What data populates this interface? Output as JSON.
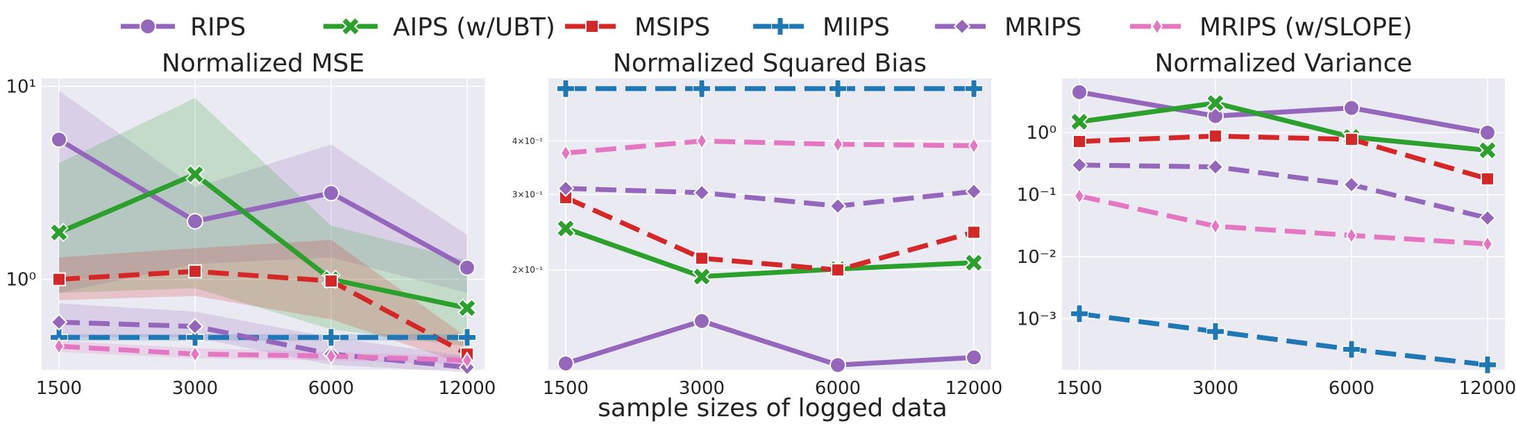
{
  "legend": [
    {
      "name": "RIPS",
      "color": "#9467bd",
      "dash": "solid",
      "marker": "circle"
    },
    {
      "name": "AIPS (w/UBT)",
      "color": "#2ca02c",
      "dash": "solid",
      "marker": "x"
    },
    {
      "name": "MSIPS",
      "color": "#d62728",
      "dash": "dashed",
      "marker": "square"
    },
    {
      "name": "MIIPS",
      "color": "#1f77b4",
      "dash": "dashed",
      "marker": "plus"
    },
    {
      "name": "MRIPS",
      "color": "#9467bd",
      "dash": "dashed",
      "marker": "diamond"
    },
    {
      "name": "MRIPS (w/SLOPE)",
      "color": "#e377c2",
      "dash": "dashed",
      "marker": "thin_diamond"
    }
  ],
  "xlabel": "sample sizes of logged data",
  "chart_data": [
    {
      "type": "line",
      "title": "Normalized MSE",
      "x": [
        "1500",
        "3000",
        "6000",
        "12000"
      ],
      "yscale": "log",
      "ylim": [
        0.34,
        11
      ],
      "yticks": [
        {
          "value": 1,
          "label": "10⁰"
        },
        {
          "value": 10,
          "label": "10¹"
        }
      ],
      "ytick_style": "normal",
      "series": [
        {
          "name": "RIPS",
          "values": [
            5.3,
            2.0,
            2.8,
            1.15
          ],
          "band": [
            [
              0.85,
              9.5
            ],
            [
              1.2,
              3.0
            ],
            [
              1.3,
              5.0
            ],
            [
              0.85,
              1.7
            ]
          ]
        },
        {
          "name": "AIPS (w/UBT)",
          "values": [
            1.75,
            3.5,
            1.0,
            0.71
          ],
          "band": [
            [
              0.85,
              4.0
            ],
            [
              0.9,
              8.7
            ],
            [
              0.55,
              1.9
            ],
            [
              0.45,
              1.25
            ]
          ]
        },
        {
          "name": "MSIPS",
          "values": [
            1.0,
            1.1,
            0.98,
            0.41
          ],
          "band": [
            [
              0.78,
              1.3
            ],
            [
              0.82,
              1.45
            ],
            [
              0.62,
              1.6
            ],
            [
              0.36,
              0.5
            ]
          ]
        },
        {
          "name": "MIIPS",
          "values": [
            0.5,
            0.5,
            0.5,
            0.5
          ],
          "band": [
            [
              0.48,
              0.52
            ],
            [
              0.48,
              0.52
            ],
            [
              0.48,
              0.52
            ],
            [
              0.48,
              0.52
            ]
          ]
        },
        {
          "name": "MRIPS",
          "values": [
            0.6,
            0.57,
            0.41,
            0.35
          ],
          "band": [
            [
              0.5,
              0.75
            ],
            [
              0.5,
              0.68
            ],
            [
              0.36,
              0.5
            ],
            [
              0.33,
              0.4
            ]
          ]
        },
        {
          "name": "MRIPS (w/SLOPE)",
          "values": [
            0.45,
            0.41,
            0.4,
            0.38
          ],
          "band": [
            [
              0.42,
              0.48
            ],
            [
              0.39,
              0.44
            ],
            [
              0.38,
              0.42
            ],
            [
              0.36,
              0.4
            ]
          ]
        }
      ]
    },
    {
      "type": "line",
      "title": "Normalized Squared Bias",
      "x": [
        "1500",
        "3000",
        "6000",
        "12000"
      ],
      "yscale": "log",
      "ylim": [
        0.117,
        0.56
      ],
      "yticks": [
        {
          "value": 0.2,
          "label": "2×10⁻¹"
        },
        {
          "value": 0.3,
          "label": "3×10⁻¹"
        },
        {
          "value": 0.4,
          "label": "4×10⁻¹"
        }
      ],
      "ytick_style": "small",
      "series": [
        {
          "name": "RIPS",
          "values": [
            0.121,
            0.152,
            0.12,
            0.125
          ]
        },
        {
          "name": "AIPS (w/UBT)",
          "values": [
            0.25,
            0.193,
            0.201,
            0.208
          ]
        },
        {
          "name": "MSIPS",
          "values": [
            0.295,
            0.213,
            0.2,
            0.245
          ]
        },
        {
          "name": "MIIPS",
          "values": [
            0.53,
            0.53,
            0.53,
            0.53
          ]
        },
        {
          "name": "MRIPS",
          "values": [
            0.31,
            0.303,
            0.282,
            0.305
          ]
        },
        {
          "name": "MRIPS (w/SLOPE)",
          "values": [
            0.375,
            0.4,
            0.393,
            0.39
          ]
        }
      ]
    },
    {
      "type": "line",
      "title": "Normalized Variance",
      "x": [
        "1500",
        "3000",
        "6000",
        "12000"
      ],
      "yscale": "log",
      "ylim": [
        0.00015,
        7.5
      ],
      "yticks": [
        {
          "value": 0.001,
          "label": "10⁻³"
        },
        {
          "value": 0.01,
          "label": "10⁻²"
        },
        {
          "value": 0.1,
          "label": "10⁻¹"
        },
        {
          "value": 1,
          "label": "10⁰"
        }
      ],
      "ytick_style": "normal",
      "series": [
        {
          "name": "RIPS",
          "values": [
            4.5,
            1.85,
            2.5,
            1.0
          ]
        },
        {
          "name": "AIPS (w/UBT)",
          "values": [
            1.5,
            3.0,
            0.85,
            0.52
          ]
        },
        {
          "name": "MSIPS",
          "values": [
            0.72,
            0.88,
            0.78,
            0.18
          ]
        },
        {
          "name": "MIIPS",
          "values": [
            0.0012,
            0.00062,
            0.00032,
            0.00018
          ]
        },
        {
          "name": "MRIPS",
          "values": [
            0.3,
            0.28,
            0.145,
            0.042
          ]
        },
        {
          "name": "MRIPS (w/SLOPE)",
          "values": [
            0.095,
            0.031,
            0.022,
            0.016
          ]
        }
      ]
    }
  ]
}
